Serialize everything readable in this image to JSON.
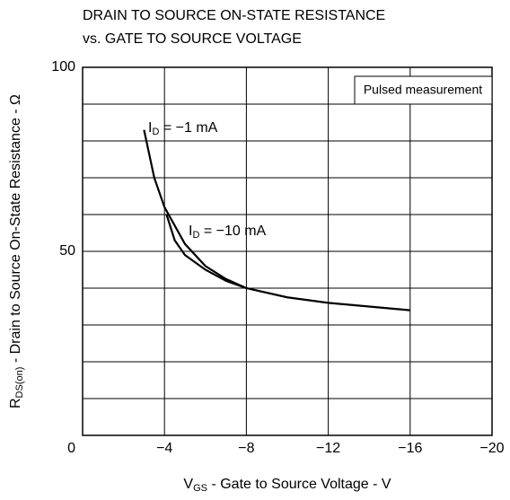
{
  "chart_data": {
    "type": "line",
    "title": [
      "DRAIN TO SOURCE ON-STATE RESISTANCE",
      "vs. GATE TO SOURCE VOLTAGE"
    ],
    "xlabel": {
      "main": "V",
      "sub": "GS",
      "rest": " - Gate to Source Voltage - V"
    },
    "ylabel": {
      "main": "R",
      "sub": "DS(on)",
      "rest": " - Drain to Source On-State Resistance - Ω"
    },
    "xlim": [
      0,
      -20
    ],
    "ylim": [
      0,
      100
    ],
    "xticks": [
      {
        "value": -4,
        "label": "−4"
      },
      {
        "value": -8,
        "label": "−8"
      },
      {
        "value": -12,
        "label": "−12"
      },
      {
        "value": -16,
        "label": "−16"
      },
      {
        "value": -20,
        "label": "−20"
      }
    ],
    "yticks": [
      0,
      50,
      100
    ],
    "yminorticks": [
      10,
      20,
      30,
      40,
      60,
      70,
      80,
      90
    ],
    "grid": true,
    "note": "Pulsed measurement",
    "series": [
      {
        "name": {
          "main": "I",
          "sub": "D",
          "rest": " = −1 mA"
        },
        "color": "#000000",
        "x": [
          -3,
          -3.5,
          -4,
          -5,
          -6,
          -7,
          -8,
          -10,
          -12,
          -14,
          -16
        ],
        "values": [
          83,
          70,
          62,
          52,
          46,
          42.5,
          40,
          37.5,
          36,
          35,
          34
        ]
      },
      {
        "name": {
          "main": "I",
          "sub": "D",
          "rest": " = −10 mA"
        },
        "color": "#000000",
        "x": [
          -4.1,
          -4.5,
          -5,
          -6,
          -7,
          -8
        ],
        "values": [
          60,
          53,
          49,
          45,
          42,
          40
        ]
      }
    ]
  }
}
